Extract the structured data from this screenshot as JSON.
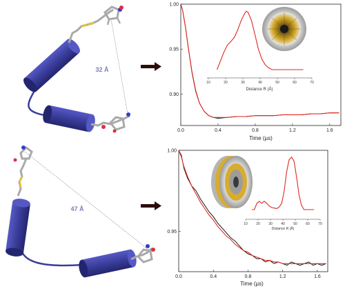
{
  "colors": {
    "helix": "#3a3d9a",
    "helix_dark": "#262a78",
    "trace_black": "#000000",
    "fit_red": "#e0271f",
    "arrow": "#2b0e08",
    "distance_text": "#7b7fb8",
    "spin_label_carbon": "#a9a9a9",
    "sulfur": "#e3c23a",
    "oxygen": "#d8304a",
    "nitrogen": "#3040c8"
  },
  "top_panel": {
    "distance_label": "32 Å",
    "chart_data": {
      "type": "line",
      "xlabel": "Time (µs)",
      "x_ticks": [
        "0.0",
        "0.4",
        "0.8",
        "1.2",
        "1.6"
      ],
      "y_ticks": [
        "1.00",
        "0.95",
        "0.90"
      ],
      "xlim": [
        0,
        1.72
      ],
      "ylim": [
        0.865,
        1.0
      ],
      "series": [
        {
          "role": "data",
          "x": [
            0.0,
            0.02,
            0.05,
            0.08,
            0.12,
            0.16,
            0.2,
            0.25,
            0.3,
            0.35,
            0.4,
            0.5,
            0.6,
            0.7,
            0.8,
            0.9,
            1.0,
            1.1,
            1.2,
            1.3,
            1.4,
            1.5,
            1.6,
            1.7
          ],
          "y": [
            1.0,
            0.993,
            0.975,
            0.952,
            0.924,
            0.903,
            0.89,
            0.881,
            0.876,
            0.874,
            0.873,
            0.874,
            0.875,
            0.875,
            0.876,
            0.876,
            0.876,
            0.877,
            0.877,
            0.877,
            0.878,
            0.878,
            0.879,
            0.879
          ]
        },
        {
          "role": "fit",
          "x": [
            0.0,
            0.02,
            0.05,
            0.08,
            0.12,
            0.16,
            0.2,
            0.25,
            0.3,
            0.35,
            0.4,
            0.5,
            0.6,
            0.7,
            0.8,
            0.9,
            1.0,
            1.1,
            1.2,
            1.3,
            1.4,
            1.5,
            1.6,
            1.7
          ],
          "y": [
            1.0,
            0.993,
            0.975,
            0.952,
            0.925,
            0.904,
            0.89,
            0.881,
            0.876,
            0.874,
            0.874,
            0.874,
            0.875,
            0.875,
            0.876,
            0.876,
            0.876,
            0.877,
            0.877,
            0.877,
            0.878,
            0.878,
            0.879,
            0.879
          ]
        }
      ],
      "inset": {
        "type": "line",
        "xlabel": "Distance R (Å)",
        "x_ticks": [
          "10",
          "20",
          "30",
          "40",
          "50",
          "60",
          "70"
        ],
        "xlim": [
          10,
          70
        ],
        "ylim": [
          0,
          1.05
        ],
        "series": [
          {
            "role": "distribution",
            "x": [
              15,
              17,
              19,
              21,
              23,
              25,
              27,
              29,
              31,
              32,
              33,
              35,
              37,
              39,
              41,
              43,
              45,
              47,
              50,
              55,
              60,
              65
            ],
            "y": [
              0.0,
              0.15,
              0.3,
              0.42,
              0.48,
              0.55,
              0.68,
              0.84,
              0.96,
              1.0,
              0.98,
              0.84,
              0.6,
              0.35,
              0.18,
              0.08,
              0.03,
              0.0,
              0.0,
              0.0,
              0.0,
              0.0
            ]
          }
        ]
      }
    }
  },
  "bottom_panel": {
    "distance_label": "47 Å",
    "chart_data": {
      "type": "line",
      "xlabel": "Time (µs)",
      "x_ticks": [
        "0.0",
        "0.4",
        "0.8",
        "1.2",
        "1.6"
      ],
      "y_ticks": [
        "1.00",
        "0.95"
      ],
      "xlim": [
        0,
        1.72
      ],
      "ylim": [
        0.925,
        1.0
      ],
      "series": [
        {
          "role": "data",
          "x": [
            0.0,
            0.03,
            0.06,
            0.1,
            0.15,
            0.2,
            0.25,
            0.3,
            0.35,
            0.4,
            0.45,
            0.5,
            0.55,
            0.6,
            0.65,
            0.7,
            0.75,
            0.8,
            0.85,
            0.9,
            0.95,
            1.0,
            1.05,
            1.1,
            1.15,
            1.2,
            1.25,
            1.3,
            1.35,
            1.4,
            1.45,
            1.5,
            1.55,
            1.6,
            1.65,
            1.7
          ],
          "y": [
            1.0,
            0.997,
            0.989,
            0.983,
            0.978,
            0.975,
            0.97,
            0.966,
            0.962,
            0.959,
            0.955,
            0.952,
            0.949,
            0.946,
            0.944,
            0.941,
            0.938,
            0.936,
            0.935,
            0.933,
            0.933,
            0.931,
            0.932,
            0.93,
            0.931,
            0.93,
            0.929,
            0.931,
            0.93,
            0.929,
            0.93,
            0.931,
            0.929,
            0.93,
            0.929,
            0.93
          ]
        },
        {
          "role": "fit",
          "x": [
            0.0,
            0.03,
            0.06,
            0.1,
            0.15,
            0.2,
            0.25,
            0.3,
            0.35,
            0.4,
            0.45,
            0.5,
            0.55,
            0.6,
            0.65,
            0.7,
            0.75,
            0.8,
            0.85,
            0.9,
            0.95,
            1.0,
            1.05,
            1.1,
            1.15,
            1.2,
            1.25,
            1.3,
            1.35,
            1.4,
            1.45,
            1.5,
            1.55,
            1.6,
            1.65,
            1.7
          ],
          "y": [
            1.0,
            0.996,
            0.99,
            0.984,
            0.978,
            0.973,
            0.968,
            0.964,
            0.96,
            0.957,
            0.953,
            0.95,
            0.947,
            0.945,
            0.942,
            0.94,
            0.938,
            0.937,
            0.935,
            0.934,
            0.933,
            0.932,
            0.932,
            0.931,
            0.931,
            0.93,
            0.93,
            0.93,
            0.93,
            0.93,
            0.93,
            0.93,
            0.93,
            0.93,
            0.93,
            0.93
          ]
        }
      ],
      "inset": {
        "type": "line",
        "xlabel": "Distance R (Å)",
        "x_ticks": [
          "10",
          "20",
          "30",
          "40",
          "50",
          "60",
          "70"
        ],
        "xlim": [
          10,
          70
        ],
        "ylim": [
          0,
          1.05
        ],
        "series": [
          {
            "role": "distribution",
            "x": [
              15,
              17,
              19,
              21,
              23,
              25,
              27,
              29,
              31,
              33,
              35,
              37,
              39,
              41,
              43,
              45,
              47,
              49,
              51,
              53,
              55,
              57,
              59,
              61,
              65
            ],
            "y": [
              0.0,
              0.0,
              0.12,
              0.16,
              0.12,
              0.16,
              0.12,
              0.07,
              0.04,
              0.03,
              0.02,
              0.05,
              0.12,
              0.35,
              0.72,
              0.95,
              1.0,
              0.92,
              0.62,
              0.28,
              0.08,
              0.0,
              0.0,
              0.0,
              0.0
            ]
          }
        ]
      }
    }
  }
}
